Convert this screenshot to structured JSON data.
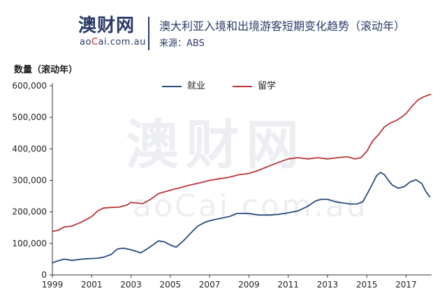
{
  "header": {
    "logo_cn": "澳财网",
    "logo_en_pre": "ao",
    "logo_en_accent": "C",
    "logo_en_post": "ai.com.au",
    "title": "澳大利亚入境和出境游客短期变化趋势（滚动年）",
    "source": "来源：ABS"
  },
  "watermark": {
    "cn": "澳财网",
    "en": "aoCai.com.au"
  },
  "colors": {
    "employment": "#2b4a7c",
    "study": "#b8353a",
    "brand": "#2b3a67"
  },
  "chart_data": {
    "type": "line",
    "title": "澳大利亚入境和出境游客短期变化趋势（滚动年）",
    "ylabel": "数量（滚动年）",
    "xlabel": "",
    "xlim": [
      1999,
      2018.3
    ],
    "ylim": [
      0,
      600000
    ],
    "x_ticks": [
      "1999",
      "2001",
      "2003",
      "2005",
      "2007",
      "2009",
      "2011",
      "2013",
      "2015",
      "2017"
    ],
    "y_ticks": [
      "0",
      "100,000",
      "200,000",
      "300,000",
      "400,000",
      "500,000",
      "600,000"
    ],
    "legend_position": "top-center",
    "grid": false,
    "series": [
      {
        "name": "就业",
        "x": [
          1999.0,
          1999.3,
          1999.6,
          2000.0,
          2000.5,
          2001.0,
          2001.3,
          2001.6,
          2002.0,
          2002.3,
          2002.6,
          2003.0,
          2003.5,
          2004.0,
          2004.4,
          2004.7,
          2005.0,
          2005.3,
          2005.7,
          2006.0,
          2006.4,
          2006.8,
          2007.2,
          2007.6,
          2008.0,
          2008.4,
          2009.0,
          2009.5,
          2010.0,
          2010.5,
          2011.0,
          2011.5,
          2012.0,
          2012.4,
          2012.7,
          2013.0,
          2013.4,
          2013.8,
          2014.2,
          2014.5,
          2014.8,
          2015.0,
          2015.3,
          2015.5,
          2015.7,
          2015.9,
          2016.1,
          2016.3,
          2016.6,
          2016.9,
          2017.2,
          2017.5,
          2017.8,
          2018.0,
          2018.2
        ],
        "values": [
          38000,
          45000,
          50000,
          46000,
          50000,
          52000,
          53000,
          56000,
          65000,
          82000,
          85000,
          80000,
          70000,
          90000,
          108000,
          105000,
          95000,
          88000,
          110000,
          130000,
          155000,
          168000,
          175000,
          180000,
          185000,
          195000,
          195000,
          190000,
          190000,
          192000,
          197000,
          203000,
          218000,
          235000,
          240000,
          240000,
          232000,
          228000,
          225000,
          225000,
          232000,
          255000,
          290000,
          315000,
          325000,
          318000,
          300000,
          285000,
          275000,
          280000,
          295000,
          302000,
          290000,
          265000,
          248000
        ]
      },
      {
        "name": "留学",
        "x": [
          1999.0,
          1999.3,
          1999.6,
          2000.0,
          2000.5,
          2001.0,
          2001.3,
          2001.6,
          2002.0,
          2002.4,
          2002.8,
          2003.0,
          2003.3,
          2003.6,
          2004.0,
          2004.4,
          2004.8,
          2005.2,
          2005.6,
          2006.0,
          2006.5,
          2007.0,
          2007.5,
          2008.0,
          2008.5,
          2009.0,
          2009.5,
          2010.0,
          2010.5,
          2011.0,
          2011.5,
          2012.0,
          2012.5,
          2013.0,
          2013.5,
          2014.0,
          2014.4,
          2014.7,
          2015.0,
          2015.3,
          2015.6,
          2015.9,
          2016.2,
          2016.5,
          2016.8,
          2017.0,
          2017.3,
          2017.6,
          2017.9,
          2018.1,
          2018.25
        ],
        "values": [
          138000,
          142000,
          152000,
          155000,
          168000,
          185000,
          203000,
          212000,
          214000,
          215000,
          222000,
          230000,
          228000,
          226000,
          240000,
          258000,
          265000,
          272000,
          278000,
          285000,
          292000,
          300000,
          305000,
          310000,
          318000,
          322000,
          332000,
          345000,
          357000,
          368000,
          372000,
          368000,
          372000,
          368000,
          372000,
          375000,
          368000,
          372000,
          392000,
          425000,
          445000,
          470000,
          482000,
          490000,
          502000,
          512000,
          535000,
          555000,
          565000,
          570000,
          573000
        ]
      }
    ]
  }
}
